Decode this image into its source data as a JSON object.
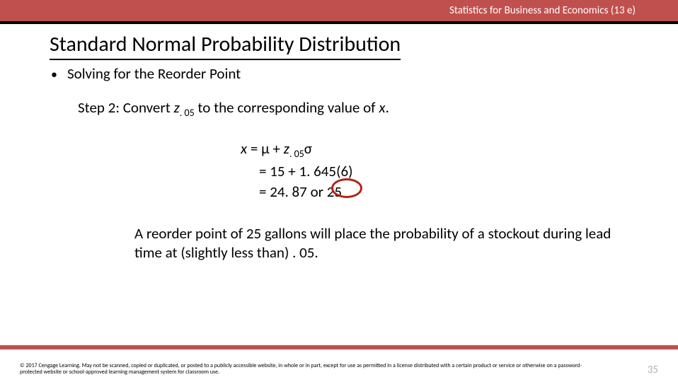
{
  "header_title": "Statistics for Business and Economics (13 e)",
  "slide_title": "Standard Normal Probability Distribution",
  "bullet": "Solving for the Reorder Point",
  "step_prefix": "Step 2:  Convert ",
  "step_var": "z",
  "step_sub": ". 05",
  "step_suffix": " to the corresponding value of ",
  "step_xvar": "x",
  "step_end": ".",
  "eq1_lhs": "x",
  "eq1_eq": " = ",
  "eq1_mu": "μ",
  "eq1_plus": " + ",
  "eq1_z": "z",
  "eq1_zsub": ". 05",
  "eq1_sigma": "σ",
  "eq2": "= 15 + 1. 645(6)",
  "eq3": "= 24. 87 or   25",
  "conclusion": "A reorder point of 25 gallons will place the probability of a stockout during lead time at (slightly less than) . 05.",
  "copyright": "© 2017 Cengage Learning.  May not be scanned, copied or duplicated, or posted to a publicly accessible website, in whole or in part, except for use as permitted  in a license distributed with a certain product or service or otherwise on a password-protected website or school-approved learning management system for classroom use.",
  "page_number": "35"
}
